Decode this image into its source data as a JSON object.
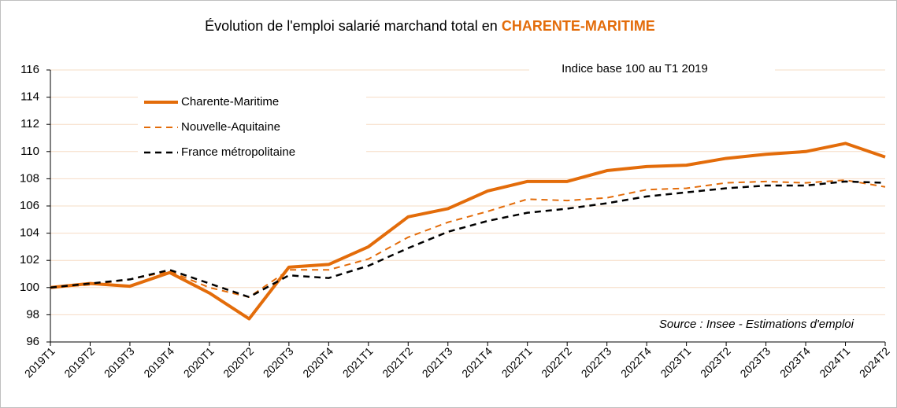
{
  "chart_data": {
    "type": "line",
    "title": "Évolution de l'emploi salarié marchand total en",
    "title_highlight": "CHARENTE-MARITIME",
    "subtitle": "Indice base 100 au T1 2019",
    "source": "Source : Insee - Estimations d'emploi",
    "categories": [
      "2019T1",
      "2019T2",
      "2019T3",
      "2019T4",
      "2020T1",
      "2020T2",
      "2020T3",
      "2020T4",
      "2021T1",
      "2021T2",
      "2021T3",
      "2021T4",
      "2022T1",
      "2022T2",
      "2022T3",
      "2022T4",
      "2023T1",
      "2023T2",
      "2023T3",
      "2023T4",
      "2024T1",
      "2024T2"
    ],
    "series": [
      {
        "name": "Charente-Maritime",
        "color": "#e36c0a",
        "dash": false,
        "values": [
          100,
          100.3,
          100.1,
          101.1,
          99.6,
          97.7,
          101.5,
          101.7,
          103.0,
          105.2,
          105.8,
          107.1,
          107.8,
          107.8,
          108.6,
          108.9,
          109.0,
          109.5,
          109.8,
          110.0,
          110.6,
          109.6
        ]
      },
      {
        "name": "Nouvelle-Aquitaine",
        "color": "#e36c0a",
        "dash": true,
        "values": [
          100,
          100.2,
          100.6,
          101.2,
          100.0,
          99.3,
          101.3,
          101.3,
          102.1,
          103.7,
          104.8,
          105.6,
          106.5,
          106.4,
          106.6,
          107.2,
          107.3,
          107.7,
          107.8,
          107.7,
          107.9,
          107.4
        ]
      },
      {
        "name": "France métropolitaine",
        "color": "#000000",
        "dash": true,
        "values": [
          100,
          100.3,
          100.6,
          101.3,
          100.3,
          99.3,
          100.9,
          100.7,
          101.6,
          102.9,
          104.1,
          104.9,
          105.5,
          105.8,
          106.2,
          106.7,
          107.0,
          107.3,
          107.5,
          107.5,
          107.8,
          107.7
        ]
      }
    ],
    "ylim": [
      96,
      116
    ],
    "yticks": [
      96,
      98,
      100,
      102,
      104,
      106,
      108,
      110,
      112,
      114,
      116
    ],
    "grid": true,
    "grid_color": "#f6dcc4",
    "legend": "upper left"
  }
}
